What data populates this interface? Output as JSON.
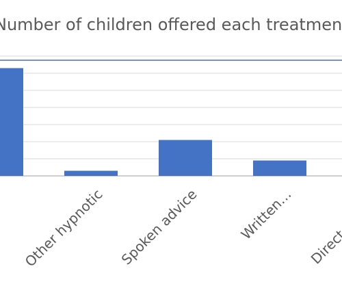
{
  "chart_data": {
    "type": "bar",
    "title": "Number of children offered each treatment",
    "categories": [
      "",
      "Other hypnotic",
      "Spoken advice",
      "Written…",
      "Directed the…"
    ],
    "values": [
      63,
      3,
      21,
      9,
      0
    ],
    "ylim": [
      0,
      70
    ],
    "y_gridline_step": 10,
    "grid": true,
    "legend": "none",
    "xlabel": "",
    "ylabel": ""
  },
  "colors": {
    "bar": "#4472C4",
    "grid": "#D9D9D9",
    "axis": "#BFBFBF",
    "text": "#595959"
  }
}
